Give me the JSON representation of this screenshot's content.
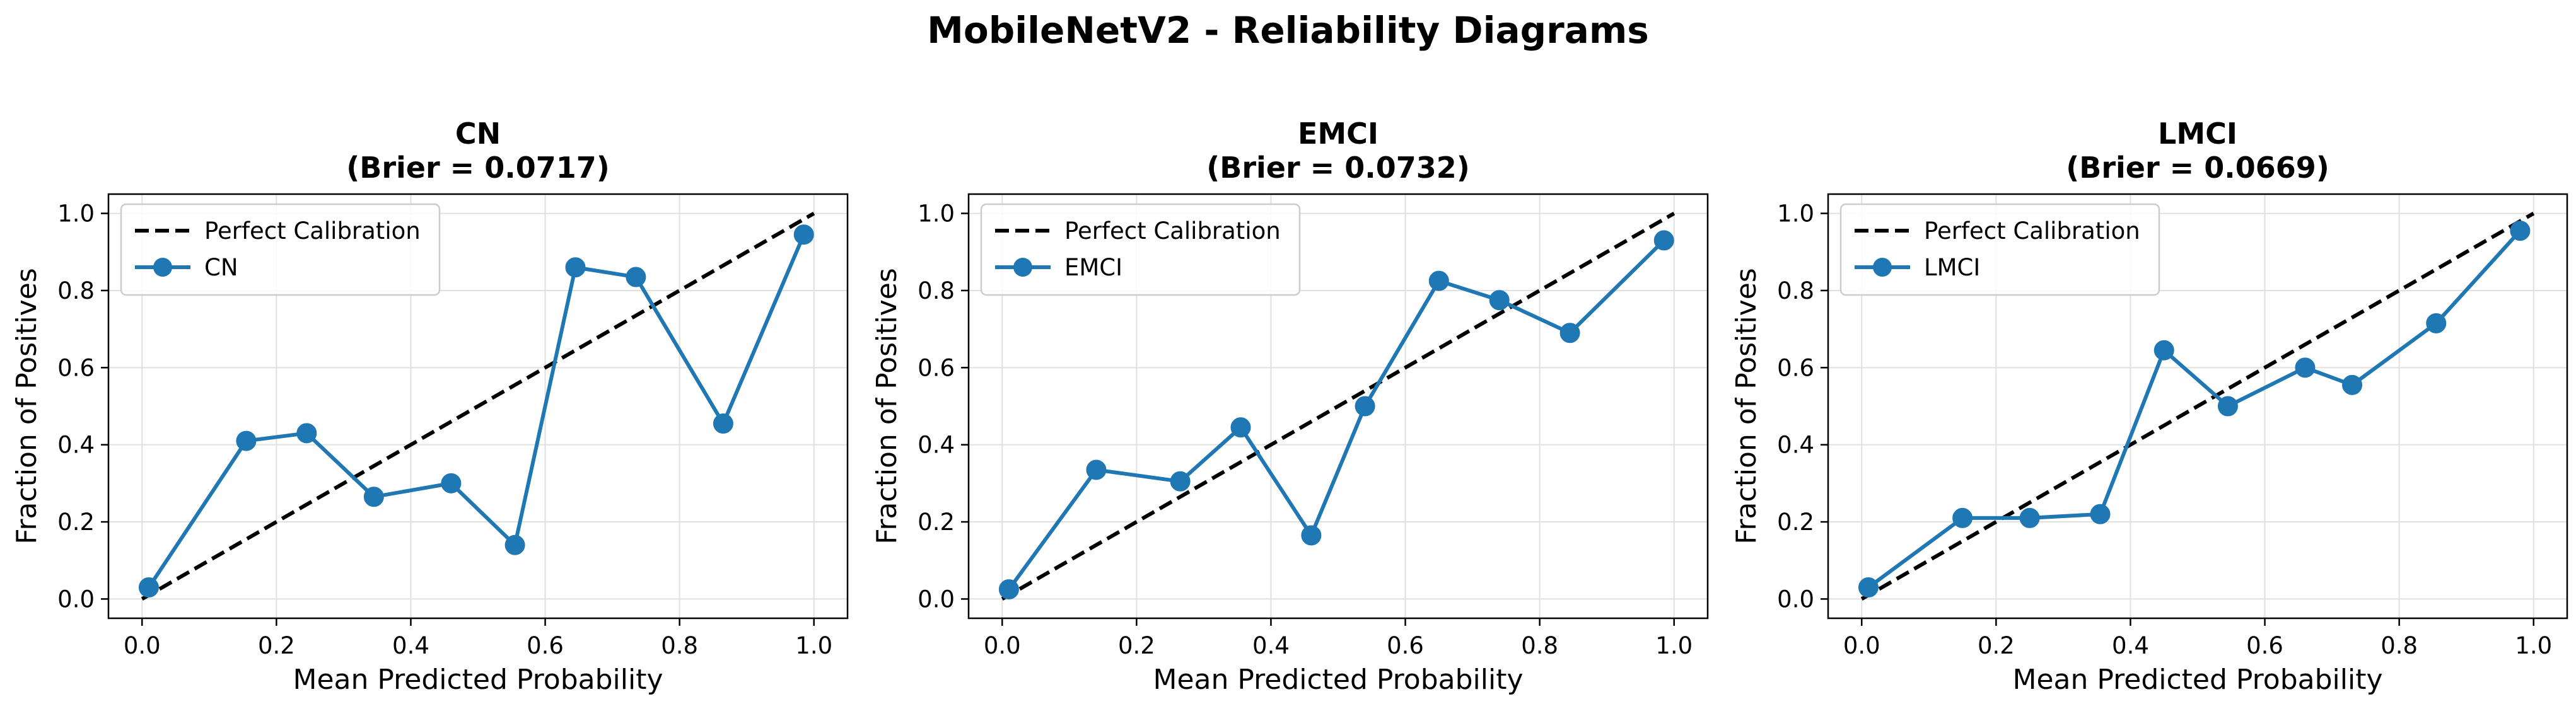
{
  "figure": {
    "suptitle": "MobileNetV2 - Reliability Diagrams"
  },
  "colors": {
    "series": "#1f77b4",
    "perfect": "#000000",
    "grid": "#e0e0e0",
    "axes": "#000000"
  },
  "chart_data": [
    {
      "type": "line",
      "title_line1": "CN",
      "title_line2": "(Brier = 0.0717)",
      "xlabel": "Mean Predicted Probability",
      "ylabel": "Fraction of Positives",
      "xlim": [
        -0.05,
        1.05
      ],
      "ylim": [
        -0.05,
        1.05
      ],
      "xticks": [
        "0.0",
        "0.2",
        "0.4",
        "0.6",
        "0.8",
        "1.0"
      ],
      "yticks": [
        "0.0",
        "0.2",
        "0.4",
        "0.6",
        "0.8",
        "1.0"
      ],
      "grid": true,
      "legend_position": "top-left",
      "reference": {
        "name": "Perfect Calibration",
        "x": [
          0,
          1
        ],
        "y": [
          0,
          1
        ]
      },
      "series": [
        {
          "name": "CN",
          "x": [
            0.01,
            0.155,
            0.245,
            0.345,
            0.46,
            0.555,
            0.645,
            0.735,
            0.865,
            0.985
          ],
          "y": [
            0.03,
            0.41,
            0.43,
            0.265,
            0.3,
            0.14,
            0.86,
            0.835,
            0.455,
            0.945
          ]
        }
      ]
    },
    {
      "type": "line",
      "title_line1": "EMCI",
      "title_line2": "(Brier = 0.0732)",
      "xlabel": "Mean Predicted Probability",
      "ylabel": "Fraction of Positives",
      "xlim": [
        -0.05,
        1.05
      ],
      "ylim": [
        -0.05,
        1.05
      ],
      "xticks": [
        "0.0",
        "0.2",
        "0.4",
        "0.6",
        "0.8",
        "1.0"
      ],
      "yticks": [
        "0.0",
        "0.2",
        "0.4",
        "0.6",
        "0.8",
        "1.0"
      ],
      "grid": true,
      "legend_position": "top-left",
      "reference": {
        "name": "Perfect Calibration",
        "x": [
          0,
          1
        ],
        "y": [
          0,
          1
        ]
      },
      "series": [
        {
          "name": "EMCI",
          "x": [
            0.01,
            0.14,
            0.265,
            0.355,
            0.46,
            0.54,
            0.65,
            0.74,
            0.845,
            0.985
          ],
          "y": [
            0.025,
            0.335,
            0.305,
            0.445,
            0.165,
            0.5,
            0.825,
            0.775,
            0.69,
            0.93
          ]
        }
      ]
    },
    {
      "type": "line",
      "title_line1": "LMCI",
      "title_line2": "(Brier = 0.0669)",
      "xlabel": "Mean Predicted Probability",
      "ylabel": "Fraction of Positives",
      "xlim": [
        -0.05,
        1.05
      ],
      "ylim": [
        -0.05,
        1.05
      ],
      "xticks": [
        "0.0",
        "0.2",
        "0.4",
        "0.6",
        "0.8",
        "1.0"
      ],
      "yticks": [
        "0.0",
        "0.2",
        "0.4",
        "0.6",
        "0.8",
        "1.0"
      ],
      "grid": true,
      "legend_position": "top-left",
      "reference": {
        "name": "Perfect Calibration",
        "x": [
          0,
          1
        ],
        "y": [
          0,
          1
        ]
      },
      "series": [
        {
          "name": "LMCI",
          "x": [
            0.01,
            0.15,
            0.25,
            0.355,
            0.45,
            0.545,
            0.66,
            0.73,
            0.855,
            0.98
          ],
          "y": [
            0.03,
            0.21,
            0.21,
            0.22,
            0.645,
            0.5,
            0.6,
            0.555,
            0.715,
            0.955
          ]
        }
      ]
    }
  ]
}
